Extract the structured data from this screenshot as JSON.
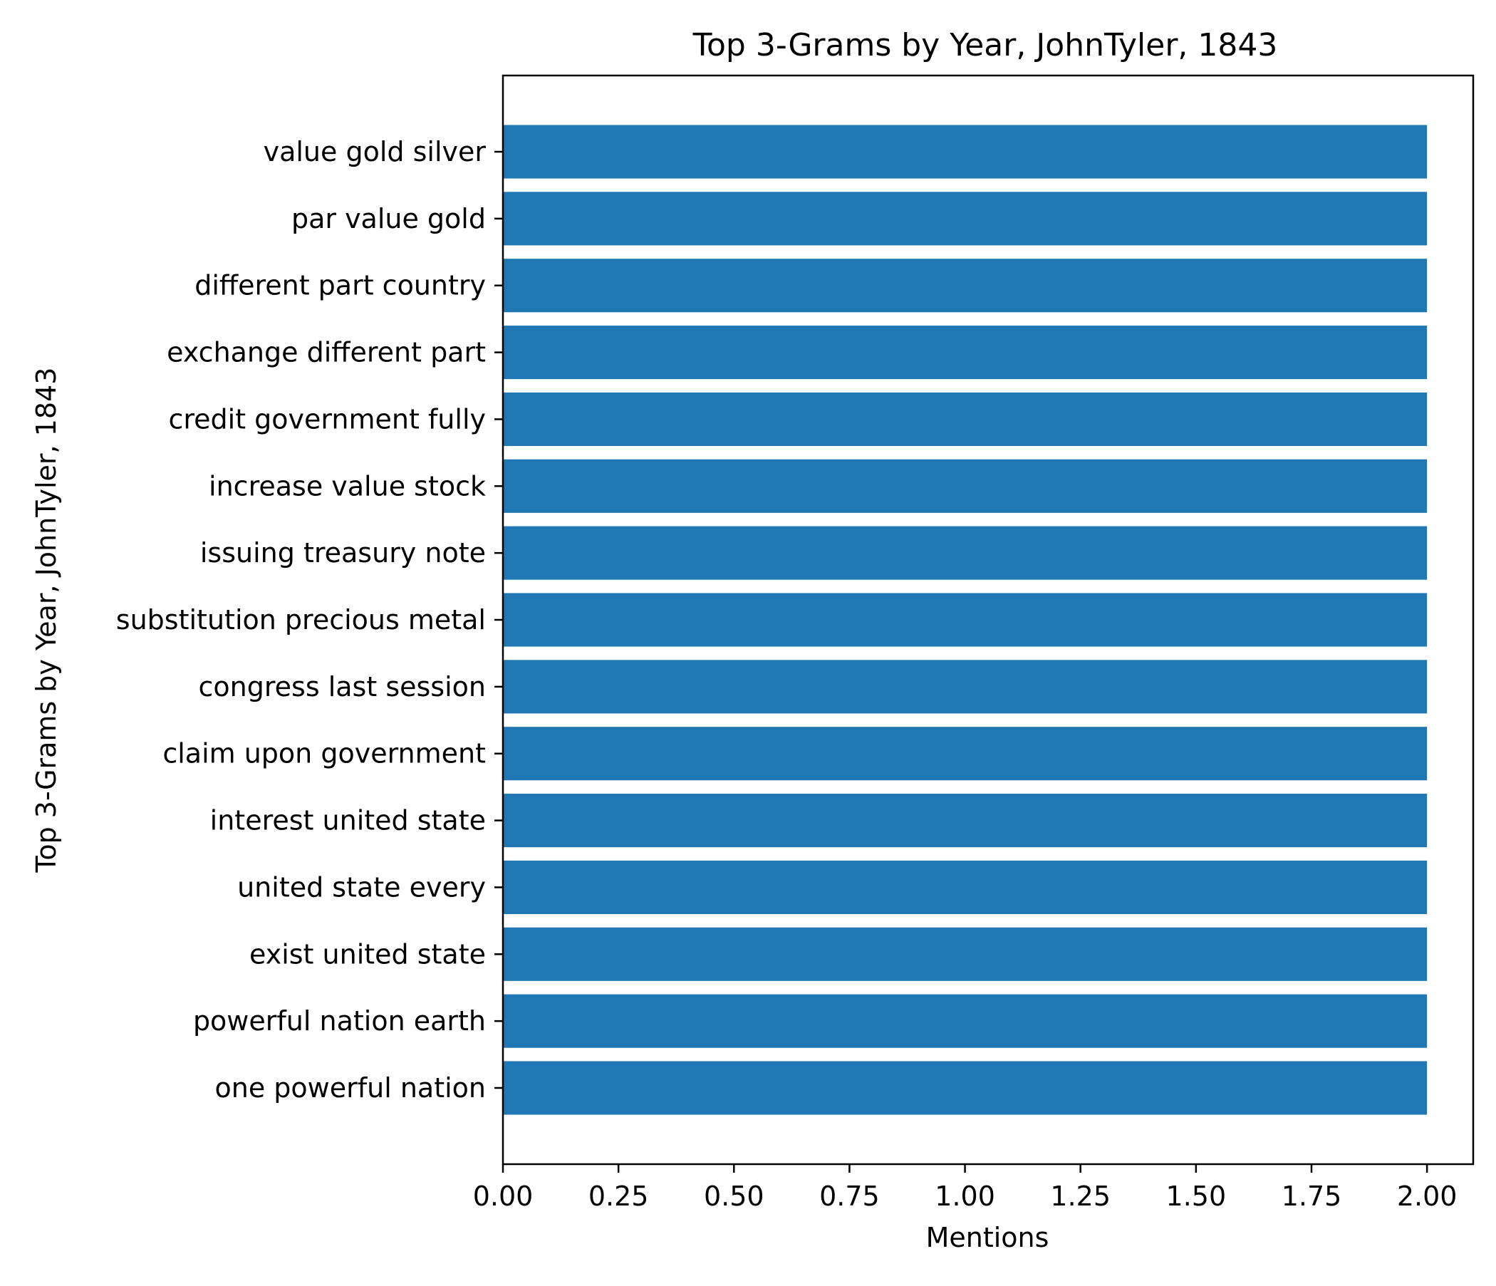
{
  "chart_data": {
    "type": "bar",
    "orientation": "horizontal",
    "title": "Top 3-Grams by Year, JohnTyler, 1843",
    "xlabel": "Mentions",
    "ylabel": "Top 3-Grams by Year, JohnTyler, 1843",
    "categories": [
      "value gold silver",
      "par value gold",
      "different part country",
      "exchange different part",
      "credit government fully",
      "increase value stock",
      "issuing treasury note",
      "substitution precious metal",
      "congress last session",
      "claim upon government",
      "interest united state",
      "united state every",
      "exist united state",
      "powerful nation earth",
      "one powerful nation"
    ],
    "values": [
      2,
      2,
      2,
      2,
      2,
      2,
      2,
      2,
      2,
      2,
      2,
      2,
      2,
      2,
      2
    ],
    "xlim": [
      0,
      2.1
    ],
    "xticks": [
      "0.00",
      "0.25",
      "0.50",
      "0.75",
      "1.00",
      "1.25",
      "1.50",
      "1.75",
      "2.00"
    ],
    "grid": false,
    "colors": {
      "bar": "#1f77b4",
      "axis": "#000000",
      "background": "#ffffff"
    }
  }
}
